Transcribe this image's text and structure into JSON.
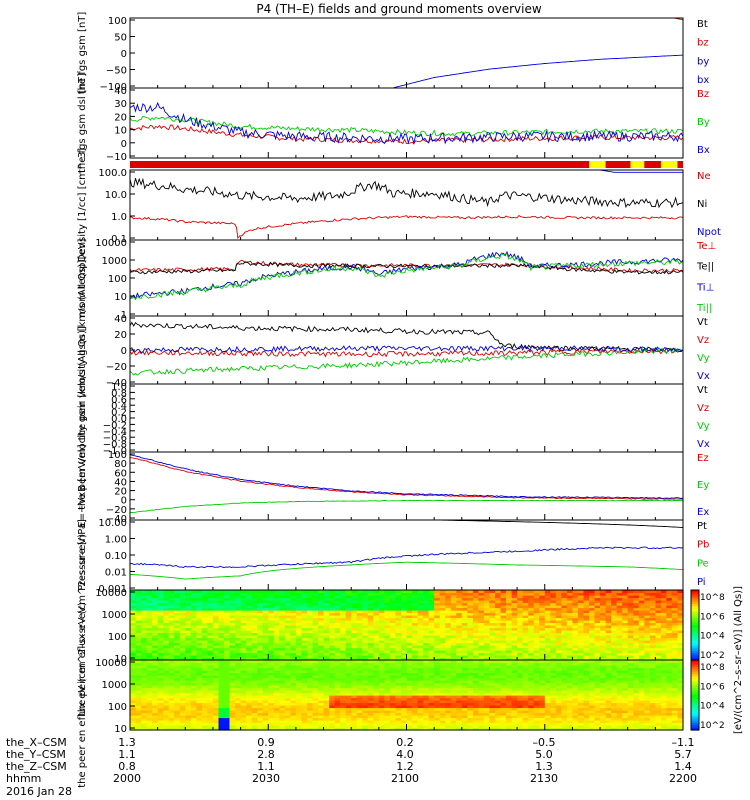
{
  "title": "P4 (TH–E) fields and ground moments overview",
  "colors": {
    "black": "#000000",
    "red": "#dd0000",
    "green": "#00cc00",
    "blue": "#0000dd",
    "yellow": "#ffff00"
  },
  "footer": {
    "rows": [
      {
        "label": "the_X–CSM",
        "values": [
          "1.3",
          "0.9",
          "0.2",
          "–0.5",
          "–1.1"
        ]
      },
      {
        "label": "the_Y–CSM",
        "values": [
          "1.1",
          "2.8",
          "4.0",
          "5.0",
          "5.7"
        ]
      },
      {
        "label": "the_Z–CSM",
        "values": [
          "0.8",
          "1.1",
          "1.2",
          "1.3",
          "1.4"
        ]
      },
      {
        "label": "hhmm",
        "values": [
          "2000",
          "2030",
          "2100",
          "2130",
          "2200"
        ]
      }
    ],
    "date": "2016 Jan 28"
  },
  "colorbars": {
    "label": "[eV/(cm^2–s–sr–eV)] (All Qs)]",
    "ticks": [
      "10^8",
      "10^6",
      "10^4",
      "10^2"
    ]
  },
  "chart_data": [
    {
      "type": "line",
      "ylabel": "the fgs gsm [nT]",
      "ylim": [
        -100,
        100
      ],
      "yticks": [
        "100",
        "50",
        "0",
        "−50",
        "−100"
      ],
      "legend": [
        "Bt",
        "bz",
        "by",
        "bx"
      ],
      "series": [
        {
          "name": "Bt",
          "color": "black",
          "points": []
        },
        {
          "name": "bz",
          "color": "red",
          "points": [
            [
              190,
              110
            ],
            [
              200,
              95
            ]
          ]
        },
        {
          "name": "bx",
          "color": "blue",
          "points": [
            [
              95,
              -100
            ],
            [
              110,
              -70
            ],
            [
              130,
              -46
            ],
            [
              150,
              -30
            ],
            [
              170,
              -18
            ],
            [
              190,
              -10
            ],
            [
              200,
              -6
            ]
          ]
        }
      ]
    },
    {
      "type": "line",
      "ylabel": "the fgs gsm dsl [nT]",
      "ylim": [
        -15,
        40
      ],
      "yticks": [
        "40",
        "30",
        "20",
        "10",
        "0",
        "−10"
      ],
      "legend": [
        "Bz",
        "By",
        "Bx"
      ],
      "series": [
        {
          "name": "Bz",
          "color": "red",
          "points": [
            [
              0,
              8
            ],
            [
              10,
              10
            ],
            [
              20,
              8
            ],
            [
              40,
              3
            ],
            [
              60,
              0
            ],
            [
              80,
              -1
            ],
            [
              100,
              -2
            ],
            [
              120,
              -1
            ],
            [
              140,
              0
            ],
            [
              160,
              1
            ],
            [
              180,
              1
            ],
            [
              200,
              1
            ]
          ],
          "noise": 2
        },
        {
          "name": "By",
          "color": "green",
          "points": [
            [
              0,
              15
            ],
            [
              10,
              17
            ],
            [
              20,
              15
            ],
            [
              40,
              10
            ],
            [
              60,
              8
            ],
            [
              80,
              7
            ],
            [
              100,
              5
            ],
            [
              120,
              4
            ],
            [
              140,
              5
            ],
            [
              160,
              6
            ],
            [
              180,
              6
            ],
            [
              200,
              6
            ]
          ],
          "noise": 2
        },
        {
          "name": "Bx",
          "color": "blue",
          "points": [
            [
              0,
              25
            ],
            [
              10,
              25
            ],
            [
              20,
              15
            ],
            [
              40,
              5
            ],
            [
              60,
              2
            ],
            [
              80,
              1
            ],
            [
              100,
              0
            ],
            [
              120,
              1
            ],
            [
              140,
              2
            ],
            [
              160,
              2
            ],
            [
              180,
              2
            ],
            [
              200,
              2
            ]
          ],
          "noise": 4
        }
      ]
    },
    {
      "type": "line",
      "ylabel": "Density [1/cc] [cm^-3]",
      "ylim": [
        0.1,
        100
      ],
      "log": true,
      "yticks": [
        "100.0",
        "10.0",
        "1.0",
        "0.1"
      ],
      "legend": [
        "Ne",
        "Ni",
        "Npot"
      ],
      "series": [
        {
          "name": "Ne",
          "color": "red",
          "points": [
            [
              0,
              0.9
            ],
            [
              10,
              0.8
            ],
            [
              20,
              0.6
            ],
            [
              38,
              0.5
            ],
            [
              39,
              0.13
            ],
            [
              45,
              0.3
            ],
            [
              60,
              0.5
            ],
            [
              80,
              0.8
            ],
            [
              100,
              1.0
            ],
            [
              120,
              0.9
            ],
            [
              140,
              1.0
            ],
            [
              160,
              0.9
            ],
            [
              180,
              0.9
            ],
            [
              200,
              0.9
            ]
          ],
          "noise": 0.05
        },
        {
          "name": "Ni",
          "color": "black",
          "points": [
            [
              0,
              30
            ],
            [
              20,
              15
            ],
            [
              40,
              8
            ],
            [
              60,
              6
            ],
            [
              75,
              8
            ],
            [
              80,
              12
            ],
            [
              88,
              25
            ],
            [
              95,
              10
            ],
            [
              110,
              10
            ],
            [
              120,
              6
            ],
            [
              130,
              4
            ],
            [
              135,
              8
            ],
            [
              140,
              8
            ],
            [
              160,
              5
            ],
            [
              180,
              4
            ],
            [
              200,
              4
            ]
          ],
          "noise": 0.2
        },
        {
          "name": "Npot",
          "color": "blue",
          "points": [
            [
              170,
              100
            ],
            [
              175,
              80
            ],
            [
              200,
              80
            ]
          ]
        }
      ]
    },
    {
      "type": "line",
      "ylabel": "mom temp [eV]",
      "ylim": [
        1,
        10000
      ],
      "log": true,
      "yticks": [
        "10000",
        "1000",
        "100",
        "10",
        "1"
      ],
      "legend": [
        "Te⊥",
        "Te||",
        "Ti⊥",
        "Ti||"
      ],
      "series": [
        {
          "name": "Te⊥",
          "color": "red",
          "points": [
            [
              0,
              250
            ],
            [
              38,
              300
            ],
            [
              39,
              700
            ],
            [
              60,
              500
            ],
            [
              100,
              450
            ],
            [
              140,
              500
            ],
            [
              160,
              350
            ],
            [
              180,
              250
            ],
            [
              200,
              250
            ]
          ],
          "noise": 0.1
        },
        {
          "name": "Te||",
          "color": "black",
          "points": [
            [
              0,
              200
            ],
            [
              38,
              250
            ],
            [
              39,
              600
            ],
            [
              60,
              450
            ],
            [
              100,
              420
            ],
            [
              140,
              450
            ],
            [
              160,
              280
            ],
            [
              180,
              200
            ],
            [
              200,
              200
            ]
          ],
          "noise": 0.1
        },
        {
          "name": "Ti⊥",
          "color": "blue",
          "points": [
            [
              0,
              10
            ],
            [
              20,
              20
            ],
            [
              40,
              50
            ],
            [
              60,
              200
            ],
            [
              80,
              400
            ],
            [
              90,
              150
            ],
            [
              100,
              300
            ],
            [
              120,
              500
            ],
            [
              135,
              2000
            ],
            [
              145,
              400
            ],
            [
              160,
              500
            ],
            [
              180,
              700
            ],
            [
              200,
              900
            ]
          ],
          "noise": 0.15
        },
        {
          "name": "Ti||",
          "color": "green",
          "points": [
            [
              0,
              9
            ],
            [
              20,
              18
            ],
            [
              40,
              40
            ],
            [
              60,
              180
            ],
            [
              80,
              350
            ],
            [
              90,
              120
            ],
            [
              100,
              250
            ],
            [
              120,
              450
            ],
            [
              135,
              1500
            ],
            [
              145,
              350
            ],
            [
              160,
              450
            ],
            [
              180,
              600
            ],
            [
              200,
              700
            ]
          ],
          "noise": 0.15
        }
      ]
    },
    {
      "type": "line",
      "ylabel": "the peir velocity gsm [km/s (All Qs)]",
      "ylim": [
        -40,
        40
      ],
      "yticks": [
        "40",
        "20",
        "0",
        "−20",
        "−40"
      ],
      "legend": [
        "Vt",
        "Vz",
        "Vy",
        "Vx"
      ],
      "series": [
        {
          "name": "Vt",
          "color": "black",
          "points": [
            [
              0,
              30
            ],
            [
              40,
              26
            ],
            [
              80,
              24
            ],
            [
              100,
              22
            ],
            [
              130,
              20
            ],
            [
              135,
              5
            ],
            [
              160,
              2
            ],
            [
              200,
              0
            ]
          ],
          "noise": 3
        },
        {
          "name": "Vz",
          "color": "red",
          "points": [
            [
              0,
              -3
            ],
            [
              80,
              -5
            ],
            [
              130,
              -4
            ],
            [
              160,
              -2
            ],
            [
              200,
              -1
            ]
          ],
          "noise": 3
        },
        {
          "name": "Vy",
          "color": "green",
          "points": [
            [
              0,
              -27
            ],
            [
              40,
              -22
            ],
            [
              80,
              -18
            ],
            [
              120,
              -12
            ],
            [
              160,
              -5
            ],
            [
              200,
              0
            ]
          ],
          "noise": 3
        },
        {
          "name": "Vx",
          "color": "blue",
          "points": [
            [
              0,
              0
            ],
            [
              80,
              2
            ],
            [
              160,
              2
            ],
            [
              200,
              0
            ]
          ],
          "noise": 3
        }
      ]
    },
    {
      "type": "line",
      "ylabel": "the peer velocity gsm [km/s (All Qs)]",
      "ylim": [
        -1,
        1
      ],
      "yticks": [
        "1.0",
        "0.8",
        "0.6",
        "0.4",
        "0.2",
        "0.0",
        "−0.2",
        "−0.4",
        "−0.6",
        "−0.8",
        "−1.0"
      ],
      "legend": [
        "Vt",
        "Vz",
        "Vy",
        "Vx"
      ],
      "series": []
    },
    {
      "type": "line",
      "ylabel": "E=−VxB [mV/m]",
      "ylim": [
        -40,
        100
      ],
      "yticks": [
        "100",
        "80",
        "60",
        "40",
        "20",
        "0",
        "−20",
        "−40"
      ],
      "legend": [
        "Ez",
        "Ey",
        "Ex"
      ],
      "series": [
        {
          "name": "Ez",
          "color": "red",
          "points": [
            [
              0,
              90
            ],
            [
              20,
              60
            ],
            [
              40,
              40
            ],
            [
              60,
              27
            ],
            [
              80,
              18
            ],
            [
              100,
              12
            ],
            [
              140,
              6
            ],
            [
              200,
              3
            ]
          ],
          "noise": 1
        },
        {
          "name": "Ey",
          "color": "green",
          "points": [
            [
              0,
              -25
            ],
            [
              20,
              -12
            ],
            [
              40,
              -5
            ],
            [
              60,
              -2
            ],
            [
              100,
              0
            ],
            [
              200,
              0
            ]
          ],
          "noise": 0.5
        },
        {
          "name": "Ex",
          "color": "blue",
          "points": [
            [
              0,
              95
            ],
            [
              20,
              65
            ],
            [
              40,
              43
            ],
            [
              60,
              30
            ],
            [
              80,
              20
            ],
            [
              100,
              14
            ],
            [
              140,
              8
            ],
            [
              200,
              5
            ]
          ],
          "noise": 1
        }
      ]
    },
    {
      "type": "line",
      "ylabel": "Pressure [nPa]",
      "ylim": [
        0.001,
        30
      ],
      "log": true,
      "yticks": [
        "10.00",
        "1.00",
        "0.10",
        "0.01",
        "0.001"
      ],
      "legend": [
        "Pt",
        "Pb",
        "Pe",
        "Pi"
      ],
      "series": [
        {
          "name": "Pt",
          "color": "black",
          "points": [
            [
              110,
              30
            ],
            [
              200,
              10
            ]
          ]
        },
        {
          "name": "Pb",
          "color": "red",
          "points": []
        },
        {
          "name": "Pe",
          "color": "green",
          "points": [
            [
              0,
              0.01
            ],
            [
              20,
              0.005
            ],
            [
              40,
              0.008
            ],
            [
              80,
              0.04
            ],
            [
              100,
              0.06
            ],
            [
              140,
              0.04
            ],
            [
              180,
              0.03
            ],
            [
              200,
              0.02
            ]
          ]
        },
        {
          "name": "Pi",
          "color": "blue",
          "points": [
            [
              0,
              0.05
            ],
            [
              20,
              0.03
            ],
            [
              40,
              0.03
            ],
            [
              80,
              0.06
            ],
            [
              100,
              0.15
            ],
            [
              140,
              0.3
            ],
            [
              170,
              0.5
            ],
            [
              200,
              0.5
            ]
          ],
          "noise": 0.05
        }
      ]
    },
    {
      "type": "heatmap",
      "ylabel": "the peir en eflux eV (cm^2–s–sr–eV)",
      "yticks": [
        "10000",
        "1000",
        "100",
        "10"
      ]
    },
    {
      "type": "heatmap",
      "ylabel": "the peer en eflux eV (cm^2–s–sr–eV)",
      "yticks": [
        "10000",
        "1000",
        "100",
        "10"
      ]
    }
  ]
}
